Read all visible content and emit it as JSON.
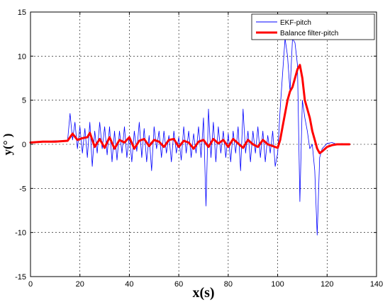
{
  "chart_data": {
    "type": "line",
    "title": "",
    "xlabel": "x(s)",
    "ylabel": "y(°  )",
    "xlim": [
      0,
      140
    ],
    "ylim": [
      -15,
      15
    ],
    "xticks": [
      0,
      20,
      40,
      60,
      80,
      100,
      120,
      140
    ],
    "yticks": [
      -15,
      -10,
      -5,
      0,
      5,
      10,
      15
    ],
    "grid": true,
    "legend_position": "top-right",
    "series": [
      {
        "name": "EKF-pitch",
        "color": "#0000ff",
        "style": "thin-noisy",
        "x": [
          0,
          5,
          10,
          15,
          16,
          17,
          18,
          19,
          20,
          21,
          22,
          23,
          24,
          25,
          26,
          27,
          28,
          29,
          30,
          31,
          32,
          33,
          34,
          35,
          36,
          37,
          38,
          39,
          40,
          41,
          42,
          43,
          44,
          45,
          46,
          47,
          48,
          49,
          50,
          51,
          52,
          53,
          54,
          55,
          56,
          57,
          58,
          59,
          60,
          61,
          62,
          63,
          64,
          65,
          66,
          67,
          68,
          69,
          70,
          71,
          72,
          73,
          74,
          75,
          76,
          77,
          78,
          79,
          80,
          81,
          82,
          83,
          84,
          85,
          86,
          87,
          88,
          89,
          90,
          91,
          92,
          93,
          94,
          95,
          96,
          97,
          98,
          99,
          100,
          101,
          102,
          103,
          104,
          105,
          106,
          107,
          108,
          109,
          110,
          111,
          112,
          113,
          114,
          115,
          116,
          117,
          118,
          119,
          120,
          122,
          124,
          126,
          128,
          129
        ],
        "y": [
          0.2,
          0.3,
          0.4,
          0.4,
          3.5,
          0.5,
          2.5,
          -0.5,
          2.0,
          -1.0,
          1.8,
          -1.5,
          2.5,
          -2.5,
          1.5,
          -1.0,
          2.5,
          -0.5,
          2.0,
          -1.2,
          2.0,
          -2.0,
          1.5,
          -1.8,
          1.5,
          -1.0,
          2.0,
          -1.5,
          1.0,
          -2.0,
          1.5,
          -0.8,
          2.5,
          -1.5,
          1.8,
          -2.0,
          1.0,
          -3.0,
          2.0,
          -0.5,
          1.5,
          -1.5,
          1.5,
          -1.0,
          1.0,
          -2.0,
          1.5,
          -1.0,
          0.8,
          -1.8,
          2.0,
          -1.0,
          1.5,
          -1.5,
          1.2,
          -1.0,
          2.0,
          -1.5,
          3.0,
          -7.0,
          4.0,
          -1.5,
          2.5,
          -2.0,
          2.0,
          -1.0,
          1.5,
          -1.5,
          1.2,
          -2.0,
          1.5,
          -1.0,
          2.0,
          -3.0,
          4.0,
          -1.0,
          1.5,
          -2.0,
          1.5,
          -1.0,
          2.0,
          -1.5,
          1.5,
          -2.0,
          1.0,
          -1.0,
          1.5,
          -2.5,
          -1.0,
          4.0,
          8.0,
          12.0,
          10.0,
          6.0,
          12.0,
          11.5,
          9.0,
          -6.5,
          5.0,
          3.0,
          1.5,
          -0.5,
          0.0,
          -3.0,
          -10.3,
          -1.5,
          -0.5,
          -0.2,
          0.1,
          0.2,
          0.0,
          0.1,
          0.0,
          0.0
        ]
      },
      {
        "name": "Balance filter-pitch",
        "color": "#ff0000",
        "style": "thick-smooth",
        "x": [
          0,
          5,
          10,
          15,
          17,
          19,
          21,
          23,
          24,
          26,
          28,
          30,
          32,
          34,
          36,
          38,
          40,
          42,
          44,
          46,
          48,
          50,
          52,
          54,
          56,
          58,
          60,
          62,
          64,
          66,
          68,
          70,
          72,
          74,
          76,
          78,
          80,
          82,
          84,
          86,
          88,
          90,
          92,
          94,
          96,
          98,
          100,
          101,
          102,
          103,
          104,
          105,
          106,
          107,
          108,
          109,
          110,
          111,
          112,
          113,
          114,
          115,
          116,
          117,
          118,
          120,
          122,
          124,
          126,
          128,
          129
        ],
        "y": [
          0.2,
          0.3,
          0.3,
          0.4,
          1.2,
          0.5,
          0.7,
          0.8,
          1.3,
          -0.3,
          0.6,
          -0.4,
          0.8,
          -0.5,
          0.5,
          0.2,
          0.8,
          -0.5,
          0.4,
          0.6,
          -0.2,
          0.5,
          0.3,
          -0.3,
          0.5,
          0.6,
          -0.3,
          0.4,
          0.2,
          -0.5,
          0.3,
          0.5,
          -0.3,
          0.6,
          0.1,
          0.5,
          -0.3,
          0.6,
          0.1,
          -0.4,
          0.5,
          0.0,
          -0.3,
          0.5,
          0.0,
          -0.2,
          -0.4,
          0.5,
          2.0,
          3.5,
          5.0,
          6.0,
          6.5,
          7.5,
          8.5,
          9.0,
          7.5,
          5.0,
          4.0,
          3.0,
          1.5,
          0.5,
          -0.5,
          -1.0,
          -0.8,
          -0.3,
          -0.1,
          0.0,
          0.0,
          0.0,
          0.0
        ]
      }
    ]
  }
}
